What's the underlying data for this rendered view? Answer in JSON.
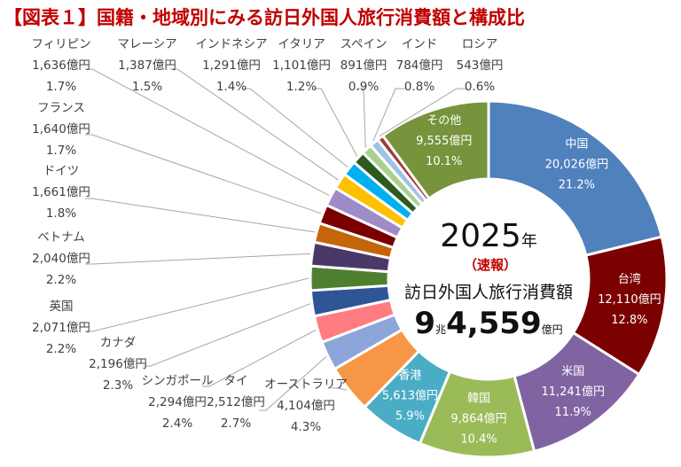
{
  "chart_data": {
    "type": "pie",
    "subtype": "donut",
    "title": "【図表１】国籍・地域別にみる訪日外国人旅行消費額と構成比",
    "unit": "億円",
    "center": {
      "year": "2025",
      "year_unit": "年",
      "flash": "（速報）",
      "caption": "訪日外国人旅行消費額",
      "total_main_1": "9",
      "total_unit_1": "兆",
      "total_main_2": "4,559",
      "total_unit_2": "億円"
    },
    "slices": [
      {
        "name": "中国",
        "value": 20026,
        "value_label": "20,026億円",
        "pct": 21.2,
        "pct_label": "21.2%",
        "color": "#4F81BD",
        "label_pos": "inside"
      },
      {
        "name": "台湾",
        "value": 12110,
        "value_label": "12,110億円",
        "pct": 12.8,
        "pct_label": "12.8%",
        "color": "#7B0000",
        "label_pos": "inside"
      },
      {
        "name": "米国",
        "value": 11241,
        "value_label": "11,241億円",
        "pct": 11.9,
        "pct_label": "11.9%",
        "color": "#8064A2",
        "label_pos": "inside"
      },
      {
        "name": "韓国",
        "value": 9864,
        "value_label": "9,864億円",
        "pct": 10.4,
        "pct_label": "10.4%",
        "color": "#9BBB59",
        "label_pos": "inside"
      },
      {
        "name": "香港",
        "value": 5613,
        "value_label": "5,613億円",
        "pct": 5.9,
        "pct_label": "5.9%",
        "color": "#4BACC6",
        "label_pos": "inside"
      },
      {
        "name": "オーストラリア",
        "value": 4104,
        "value_label": "4,104億円",
        "pct": 4.3,
        "pct_label": "4.3%",
        "color": "#F79646",
        "label_pos": "outside"
      },
      {
        "name": "タイ",
        "value": 2512,
        "value_label": "2,512億円",
        "pct": 2.7,
        "pct_label": "2.7%",
        "color": "#8EA5DA",
        "label_pos": "outside"
      },
      {
        "name": "シンガポール",
        "value": 2294,
        "value_label": "2,294億円",
        "pct": 2.4,
        "pct_label": "2.4%",
        "color": "#FF7C80",
        "label_pos": "outside"
      },
      {
        "name": "カナダ",
        "value": 2196,
        "value_label": "2,196億円",
        "pct": 2.3,
        "pct_label": "2.3%",
        "color": "#2F5597",
        "label_pos": "outside"
      },
      {
        "name": "英国",
        "value": 2071,
        "value_label": "2,071億円",
        "pct": 2.2,
        "pct_label": "2.2%",
        "color": "#4E7F2E",
        "label_pos": "outside"
      },
      {
        "name": "ベトナム",
        "value": 2040,
        "value_label": "2,040億円",
        "pct": 2.2,
        "pct_label": "2.2%",
        "color": "#4A3868",
        "label_pos": "outside"
      },
      {
        "name": "ドイツ",
        "value": 1661,
        "value_label": "1,661億円",
        "pct": 1.8,
        "pct_label": "1.8%",
        "color": "#C5650A",
        "label_pos": "outside"
      },
      {
        "name": "フランス",
        "value": 1640,
        "value_label": "1,640億円",
        "pct": 1.7,
        "pct_label": "1.7%",
        "color": "#7A0000",
        "label_pos": "outside"
      },
      {
        "name": "フィリピン",
        "value": 1636,
        "value_label": "1,636億円",
        "pct": 1.7,
        "pct_label": "1.7%",
        "color": "#9F8BC7",
        "label_pos": "outside"
      },
      {
        "name": "マレーシア",
        "value": 1387,
        "value_label": "1,387億円",
        "pct": 1.5,
        "pct_label": "1.5%",
        "color": "#FFC000",
        "label_pos": "outside"
      },
      {
        "name": "インドネシア",
        "value": 1291,
        "value_label": "1,291億円",
        "pct": 1.4,
        "pct_label": "1.4%",
        "color": "#00B0F0",
        "label_pos": "outside"
      },
      {
        "name": "イタリア",
        "value": 1101,
        "value_label": "1,101億円",
        "pct": 1.2,
        "pct_label": "1.2%",
        "color": "#2D5A1E",
        "label_pos": "outside"
      },
      {
        "name": "スペイン",
        "value": 891,
        "value_label": "891億円",
        "pct": 0.9,
        "pct_label": "0.9%",
        "color": "#A9D18E",
        "label_pos": "outside"
      },
      {
        "name": "インド",
        "value": 784,
        "value_label": "784億円",
        "pct": 0.8,
        "pct_label": "0.8%",
        "color": "#9DC3E6",
        "label_pos": "outside"
      },
      {
        "name": "ロシア",
        "value": 543,
        "value_label": "543億円",
        "pct": 0.6,
        "pct_label": "0.6%",
        "color": "#A33A3A",
        "label_pos": "outside"
      },
      {
        "name": "その他",
        "value": 9555,
        "value_label": "9,555億円",
        "pct": 10.1,
        "pct_label": "10.1%",
        "color": "#77933C",
        "label_pos": "inside"
      }
    ],
    "legend": "none"
  }
}
